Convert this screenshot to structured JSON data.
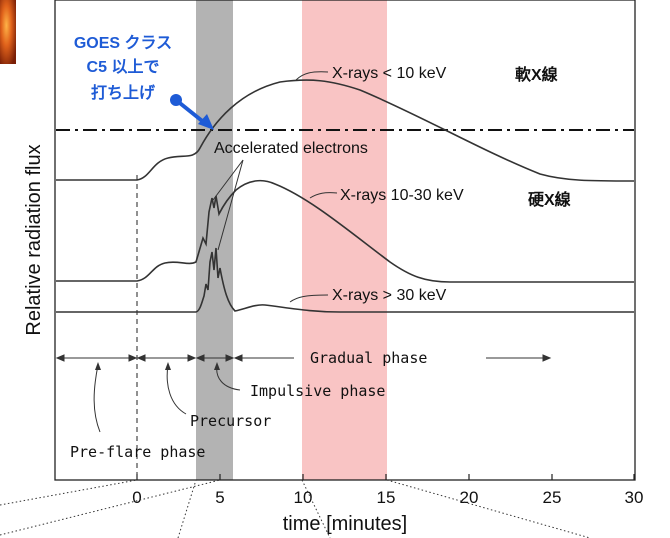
{
  "diagram": {
    "y_axis_label": "Relative radiation flux",
    "x_axis_label": "time [minutes]",
    "x_ticks": [
      "0",
      "5",
      "10",
      "15",
      "20",
      "25",
      "30"
    ],
    "annotations": {
      "goes_line1": "GOES クラス",
      "goes_line2": "C5 以上で",
      "goes_line3": "打ち上げ",
      "soft_xray_label": "X-rays < 10 keV",
      "soft_xray_jp": "軟X線",
      "hard_xray_label": "X-rays 10-30 keV",
      "hard_xray_jp": "硬X線",
      "high_xray_label": "X-rays > 30 keV",
      "accelerated_electrons": "Accelerated electrons"
    },
    "phases": {
      "gradual": "Gradual phase",
      "impulsive": "Impulsive phase",
      "precursor": "Precursor",
      "pre_flare": "Pre-flare phase"
    },
    "colors": {
      "impulsive_band": "#b3b3b3",
      "window_band": "#f9c4c4",
      "goes_text": "#1e5bd6",
      "curve": "#333333",
      "solar_icon": "#c24a12"
    }
  }
}
